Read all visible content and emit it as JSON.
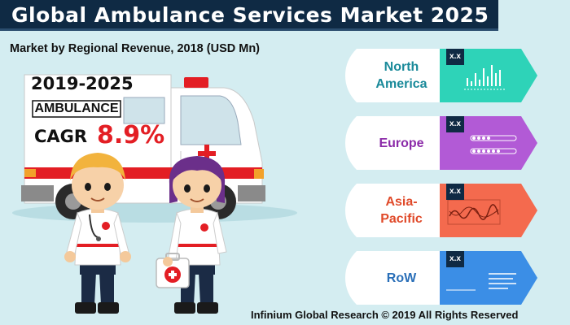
{
  "title": "Global Ambulance Services Market 2025",
  "subtitle": "Market by Regional Revenue, 2018 (USD Mn)",
  "forecast": {
    "period": "2019-2025",
    "cagr_label": "CAGR",
    "cagr_value": "8.9%"
  },
  "ambulance_label": "AMBULANCE",
  "regions": [
    {
      "name": "North America",
      "name_line1": "North",
      "name_line2": "America",
      "value": "x.x",
      "color": "#2ed3b8",
      "text_color": "#1a8a9a",
      "icon": "bar-chart-icon"
    },
    {
      "name": "Europe",
      "name_line1": "Europe",
      "name_line2": "",
      "value": "x.x",
      "color": "#b25ad6",
      "text_color": "#8b2aa8",
      "icon": "progress-dots-icon"
    },
    {
      "name": "Asia-Pacific",
      "name_line1": "Asia-",
      "name_line2": "Pacific",
      "value": "x.x",
      "color": "#f46a4e",
      "text_color": "#e04a2a",
      "icon": "wave-line-icon"
    },
    {
      "name": "RoW",
      "name_line1": "RoW",
      "name_line2": "",
      "value": "x.x",
      "color": "#3b8ee6",
      "text_color": "#2a6fb8",
      "icon": "text-lines-icon"
    }
  ],
  "footer": "Infinium Global Research © 2019 All Rights Reserved"
}
